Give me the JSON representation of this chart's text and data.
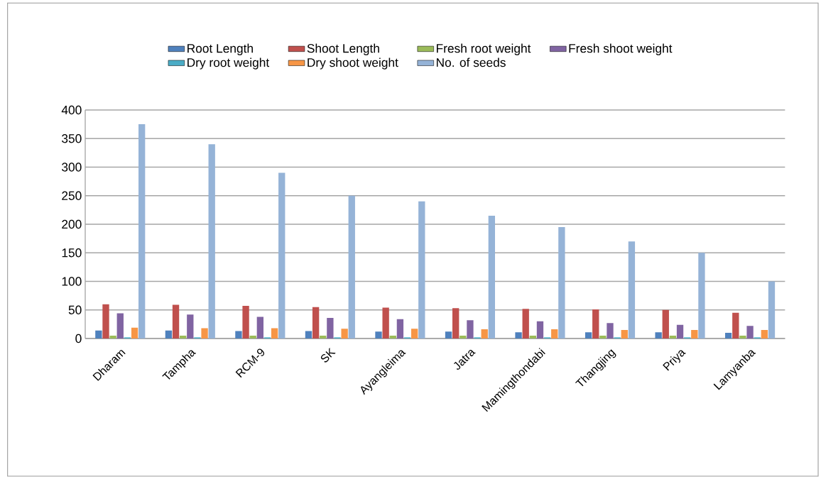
{
  "chart_data": {
    "type": "bar",
    "categories": [
      "Dharam",
      "Tampha",
      "RCM-9",
      "SK",
      "Ayangleima",
      "Jatra",
      "Mamingthondabi",
      "Thangjing",
      "Priya",
      "Lamyanba"
    ],
    "series": [
      {
        "name": "Root Length",
        "color": "#4f81bd",
        "values": [
          14,
          14,
          13,
          13,
          12,
          12,
          11,
          11,
          11,
          10
        ]
      },
      {
        "name": "Shoot Length",
        "color": "#c0504d",
        "values": [
          60,
          59,
          57,
          55,
          54,
          53,
          52,
          51,
          50,
          45
        ]
      },
      {
        "name": "Fresh root weight",
        "color": "#9bbb59",
        "values": [
          5,
          5,
          5,
          5,
          5,
          5,
          5,
          5,
          5,
          5
        ]
      },
      {
        "name": "Fresh shoot weight",
        "color": "#8064a2",
        "values": [
          44,
          42,
          38,
          36,
          34,
          32,
          30,
          27,
          24,
          22
        ]
      },
      {
        "name": "Dry root weight",
        "color": "#4bacc6",
        "values": [
          2,
          2,
          2,
          2,
          2,
          2,
          2,
          2,
          2,
          2
        ]
      },
      {
        "name": "Dry shoot weight",
        "color": "#f79646",
        "values": [
          19,
          18,
          18,
          17,
          17,
          16,
          16,
          15,
          15,
          15
        ]
      },
      {
        "name": "No. of seeds",
        "color": "#95b3d7",
        "values": [
          375,
          340,
          290,
          250,
          240,
          215,
          195,
          170,
          150,
          100
        ]
      }
    ],
    "ylim": [
      0,
      400
    ],
    "yticks": [
      0,
      50,
      100,
      150,
      200,
      250,
      300,
      350,
      400
    ],
    "grid": "y",
    "legend": "top"
  }
}
